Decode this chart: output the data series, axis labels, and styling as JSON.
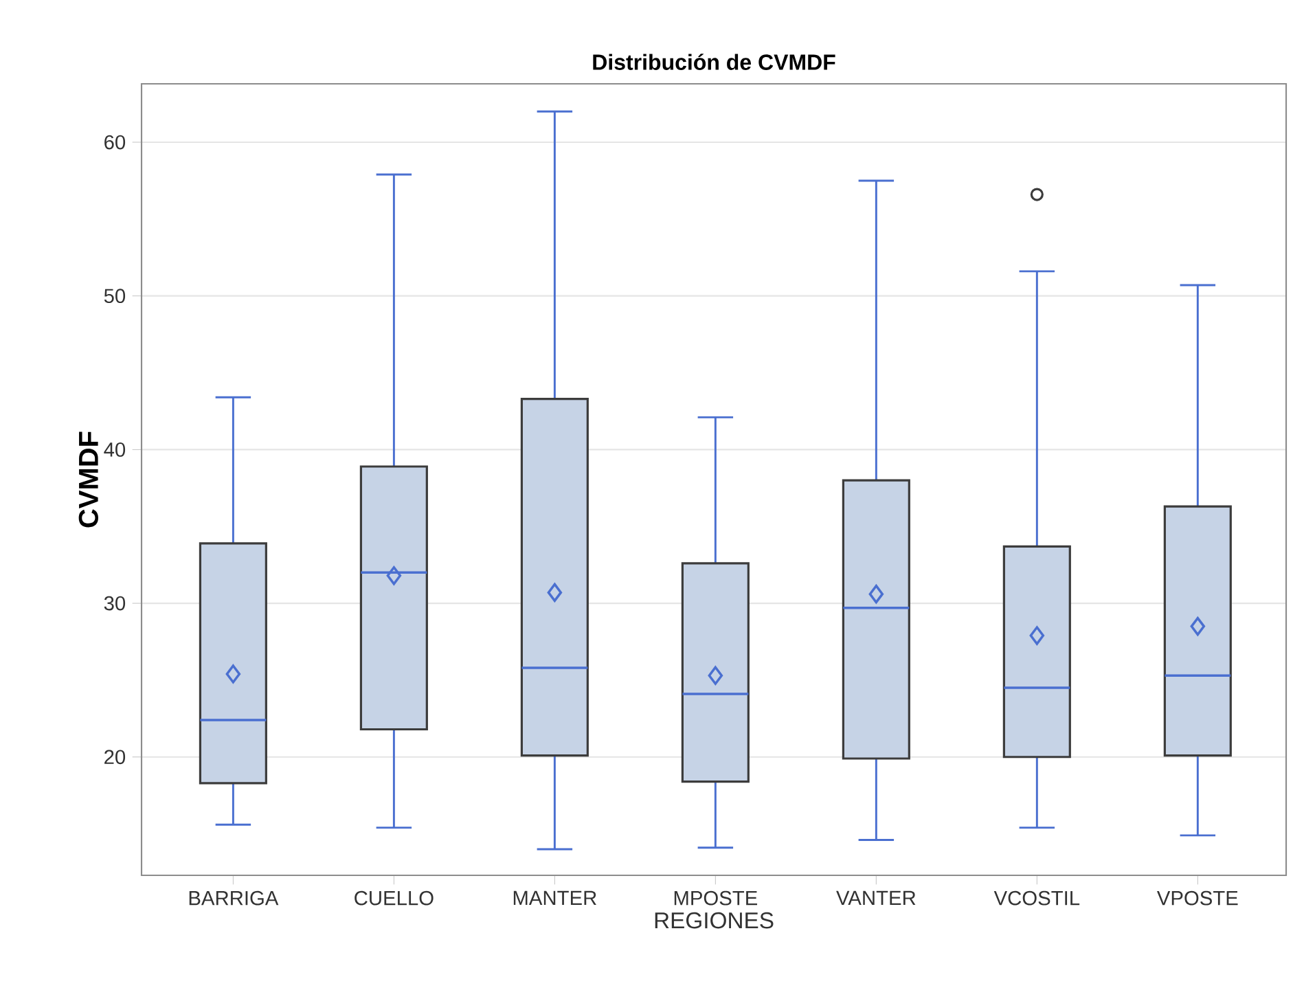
{
  "chart_data": {
    "type": "box",
    "title": "Distribución de CVMDF",
    "xlabel": "REGIONES",
    "ylabel": "CVMDF",
    "categories": [
      "BARRIGA",
      "CUELLO",
      "MANTER",
      "MPOSTE",
      "VANTER",
      "VCOSTIL",
      "VPOSTE"
    ],
    "series": [
      {
        "color": "#c6d3e6",
        "boxes": [
          {
            "low": 15.6,
            "q1": 18.3,
            "median": 22.4,
            "q3": 33.9,
            "high": 43.4,
            "mean": 25.4
          },
          {
            "low": 15.4,
            "q1": 21.8,
            "median": 32.0,
            "q3": 38.9,
            "high": 57.9,
            "mean": 31.8
          },
          {
            "low": 14.0,
            "q1": 20.1,
            "median": 25.8,
            "q3": 43.3,
            "high": 62.0,
            "mean": 30.7
          },
          {
            "low": 14.1,
            "q1": 18.4,
            "median": 24.1,
            "q3": 32.6,
            "high": 42.1,
            "mean": 25.3
          },
          {
            "low": 14.6,
            "q1": 19.9,
            "median": 29.7,
            "q3": 38.0,
            "high": 57.5,
            "mean": 30.6
          },
          {
            "low": 15.4,
            "q1": 20.0,
            "median": 24.5,
            "q3": 33.7,
            "high": 51.6,
            "mean": 27.9,
            "outliers": [
              56.6
            ]
          },
          {
            "low": 14.9,
            "q1": 20.1,
            "median": 25.3,
            "q3": 36.3,
            "high": 50.7,
            "mean": 28.5
          }
        ]
      }
    ],
    "ylim": [
      12.3,
      63.8
    ],
    "yticks": [
      20,
      30,
      40,
      50,
      60
    ],
    "grid": "y",
    "marker": "diamond"
  }
}
